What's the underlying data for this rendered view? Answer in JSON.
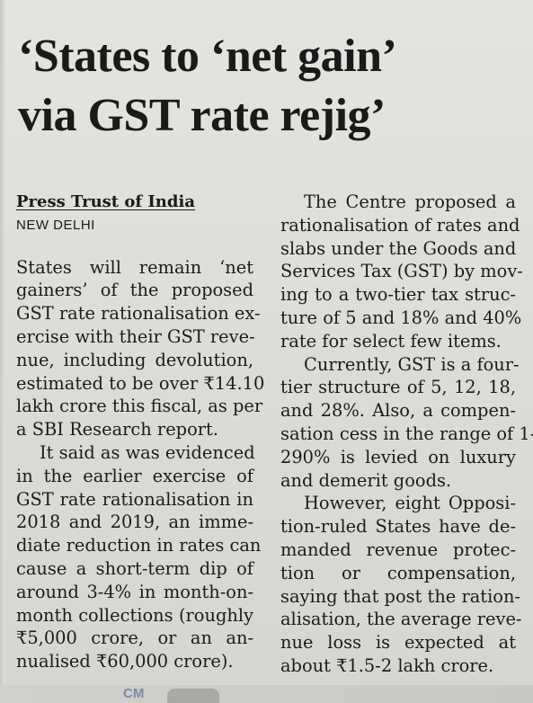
{
  "headline": {
    "line1": "‘States to ‘net gain’",
    "line2": "via GST rate rejig’"
  },
  "byline": "Press Trust of India",
  "dateline": "NEW DELHI",
  "left_column": {
    "paragraph1": [
      "States will remain ‘net",
      "gainers’ of the proposed",
      "GST rate rationalisation ex-",
      "ercise with their GST reve-",
      "nue, including devolution,",
      "estimated to be over ₹14.10",
      "lakh crore this fiscal, as per",
      "a SBI Research report."
    ],
    "paragraph2": [
      "It said as was evidenced",
      "in the earlier exercise of",
      "GST rate rationalisation in",
      "2018 and 2019, an imme-",
      "diate reduction in rates can",
      "cause a short-term dip of",
      "around 3-4% in month-on-",
      "month collections (roughly",
      "₹5,000 crore, or an an-",
      "nualised ₹60,000 crore)."
    ]
  },
  "right_column": {
    "paragraph1": [
      "The Centre proposed a",
      "rationalisation of rates and",
      "slabs under the Goods and",
      "Services Tax (GST) by mov-",
      "ing to a two-tier tax struc-",
      "ture of 5 and 18% and 40%",
      "rate for select few items."
    ],
    "paragraph2": [
      "Currently, GST is a four-",
      "tier structure of 5, 12, 18,",
      "and 28%. Also, a compen-",
      "sation cess in the range of 1-",
      "290% is levied on luxury",
      "and demerit goods."
    ],
    "paragraph3": [
      "However, eight Opposi-",
      "tion-ruled States have de-",
      "manded revenue protec-",
      "tion or compensation,",
      "saying that post the ration-",
      "alisation, the average reve-",
      "nue loss is expected at",
      "about ₹1.5-2 lakh crore."
    ]
  },
  "footer": {
    "mark": "CM"
  }
}
